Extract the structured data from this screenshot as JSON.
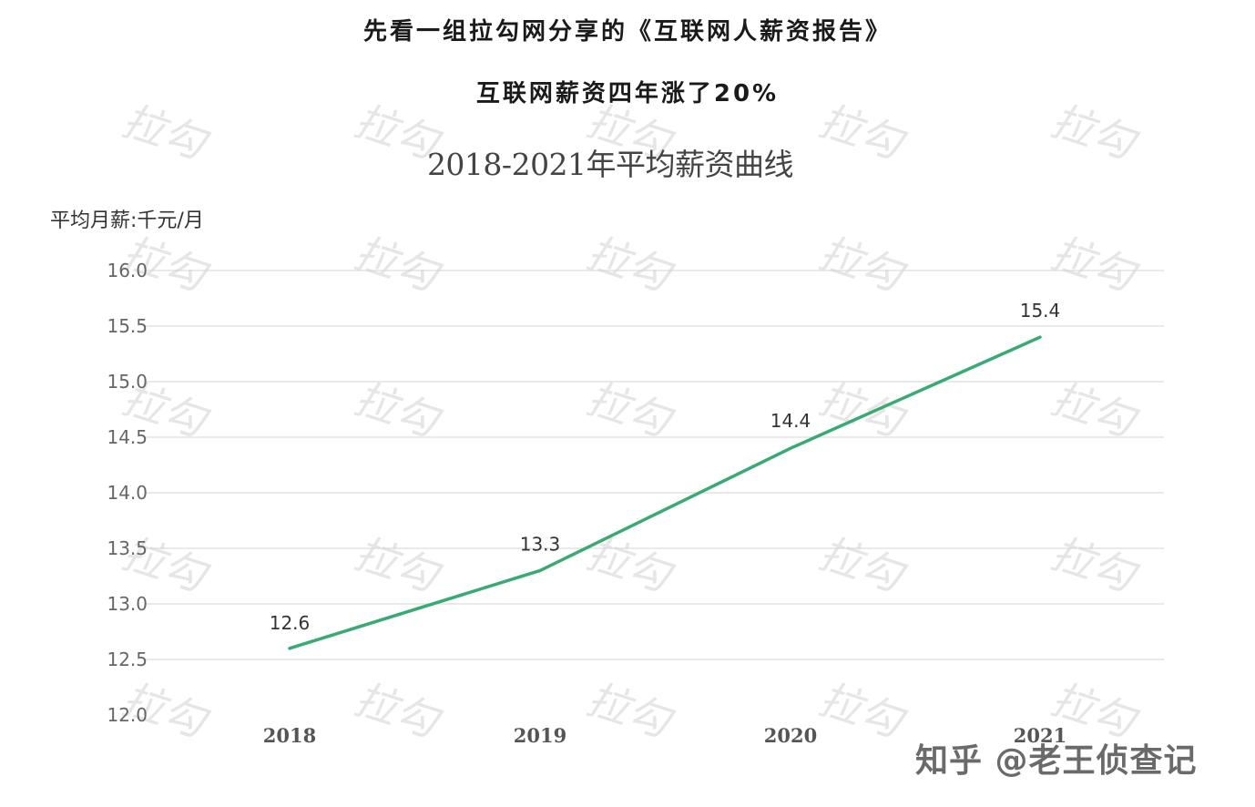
{
  "headings": {
    "line1": "先看一组拉勾网分享的《互联网人薪资报告》",
    "line2": "互联网薪资四年涨了20%"
  },
  "chart_data": {
    "type": "line",
    "title": "2018-2021年平均薪资曲线",
    "ylabel": "平均月薪:千元/月",
    "xlabel": "",
    "categories": [
      "2018",
      "2019",
      "2020",
      "2021"
    ],
    "series": [
      {
        "values": [
          12.6,
          13.3,
          14.4,
          15.4
        ],
        "color": "#3aaa75"
      }
    ],
    "data_labels": [
      "12.6",
      "13.3",
      "14.4",
      "15.4"
    ],
    "ylim": [
      12.0,
      16.0
    ],
    "y_ticks": [
      "12.0",
      "12.5",
      "13.0",
      "13.5",
      "14.0",
      "14.5",
      "15.0",
      "15.5",
      "16.0"
    ],
    "grid": true,
    "legend": "none"
  },
  "watermark": {
    "tile_text": "拉勾",
    "footer_text": "知乎 @老王侦查记"
  },
  "colors": {
    "line": "#3aaa75",
    "grid": "#d4d4d4",
    "watermark": "#e6e6e6"
  }
}
